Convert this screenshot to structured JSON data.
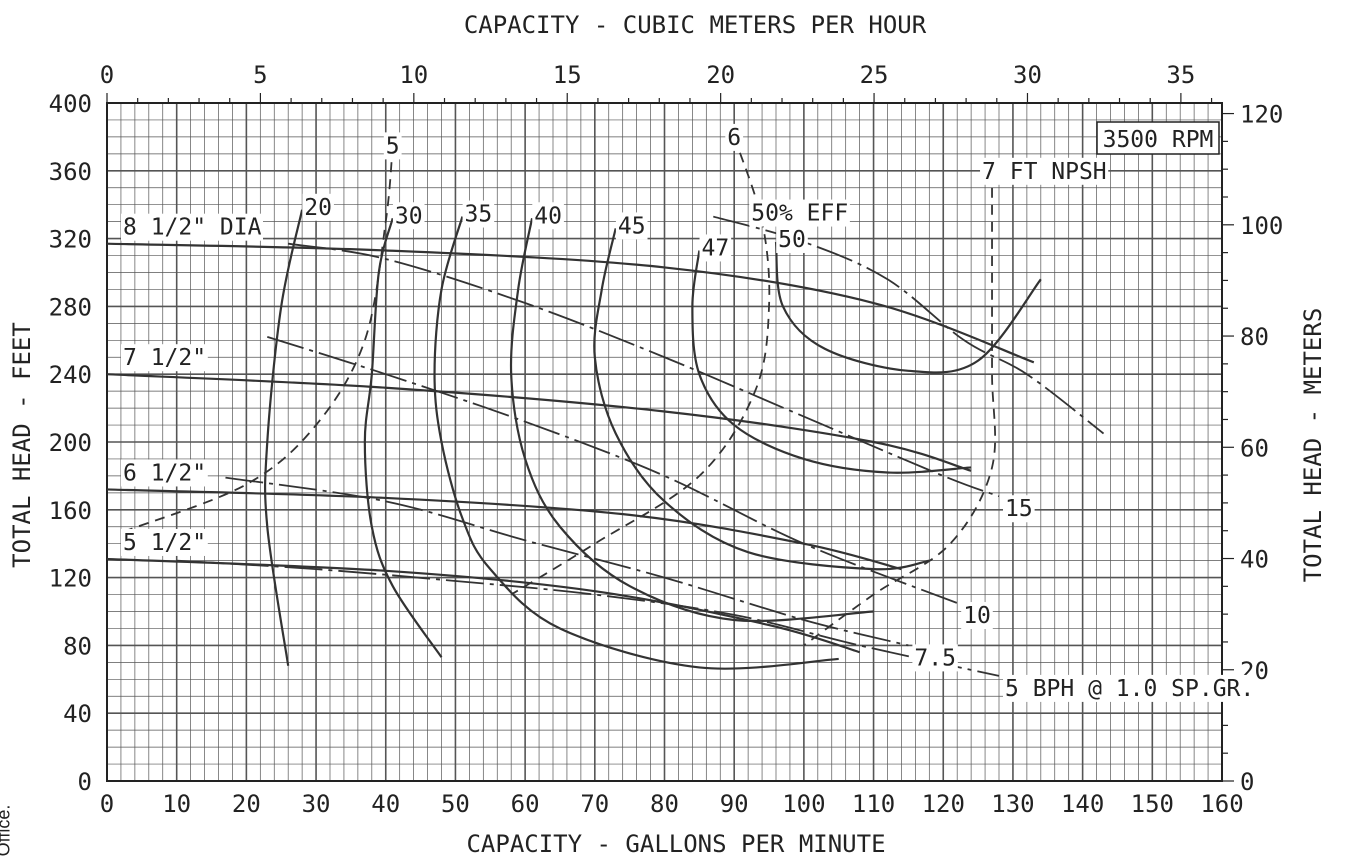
{
  "chart_data": {
    "type": "line",
    "title": "",
    "rpm_label": "3500 RPM",
    "x_bottom": {
      "label": "CAPACITY - GALLONS PER MINUTE",
      "range": [
        0,
        160
      ],
      "ticks": [
        "0",
        "10",
        "20",
        "30",
        "40",
        "50",
        "60",
        "70",
        "80",
        "90",
        "100",
        "110",
        "120",
        "130",
        "140",
        "150",
        "160"
      ]
    },
    "x_top": {
      "label": "CAPACITY - CUBIC METERS PER HOUR",
      "range": [
        0,
        36.34
      ],
      "ticks": [
        "0",
        "5",
        "10",
        "15",
        "20",
        "25",
        "30",
        "35"
      ]
    },
    "y_left": {
      "label": "TOTAL HEAD - FEET",
      "range": [
        0,
        400
      ],
      "ticks": [
        "0",
        "40",
        "80",
        "120",
        "160",
        "200",
        "240",
        "280",
        "320",
        "360",
        "400"
      ]
    },
    "y_right": {
      "label": "TOTAL HEAD - METERS",
      "range": [
        0,
        121.9
      ],
      "ticks": [
        "0",
        "20",
        "40",
        "60",
        "80",
        "100",
        "120"
      ]
    },
    "grid": true,
    "impeller_curves": [
      {
        "name": "8 1/2\" DIA",
        "points": [
          [
            0,
            317
          ],
          [
            40,
            313
          ],
          [
            80,
            303
          ],
          [
            110,
            282
          ],
          [
            133,
            247
          ]
        ]
      },
      {
        "name": "7 1/2\"",
        "points": [
          [
            0,
            240
          ],
          [
            40,
            232
          ],
          [
            80,
            218
          ],
          [
            110,
            200
          ],
          [
            124,
            183
          ]
        ]
      },
      {
        "name": "6 1/2\"",
        "points": [
          [
            0,
            172
          ],
          [
            40,
            167
          ],
          [
            75,
            157
          ],
          [
            100,
            140
          ],
          [
            114,
            125
          ]
        ]
      },
      {
        "name": "5 1/2\"",
        "points": [
          [
            0,
            131
          ],
          [
            40,
            124
          ],
          [
            70,
            112
          ],
          [
            95,
            92
          ],
          [
            108,
            76
          ]
        ]
      }
    ],
    "efficiency_curves": [
      {
        "name": "20",
        "points": [
          [
            28,
            337
          ],
          [
            25,
            280
          ],
          [
            23,
            200
          ],
          [
            23,
            150
          ],
          [
            26,
            68
          ]
        ]
      },
      {
        "name": "30",
        "points": [
          [
            41,
            332
          ],
          [
            39,
            300
          ],
          [
            38,
            240
          ],
          [
            37,
            200
          ],
          [
            38,
            150
          ],
          [
            41,
            115
          ],
          [
            48,
            73
          ]
        ]
      },
      {
        "name": "35",
        "points": [
          [
            51,
            333
          ],
          [
            48,
            290
          ],
          [
            47,
            240
          ],
          [
            48,
            200
          ],
          [
            51,
            155
          ],
          [
            55,
            125
          ],
          [
            65,
            90
          ],
          [
            85,
            67
          ],
          [
            105,
            72
          ]
        ]
      },
      {
        "name": "40",
        "points": [
          [
            61,
            332
          ],
          [
            59,
            290
          ],
          [
            58,
            240
          ],
          [
            60,
            190
          ],
          [
            65,
            150
          ],
          [
            75,
            115
          ],
          [
            90,
            95
          ],
          [
            110,
            100
          ]
        ]
      },
      {
        "name": "45",
        "points": [
          [
            73,
            326
          ],
          [
            71,
            290
          ],
          [
            70,
            250
          ],
          [
            73,
            205
          ],
          [
            80,
            165
          ],
          [
            92,
            135
          ],
          [
            110,
            125
          ],
          [
            118,
            130
          ]
        ]
      },
      {
        "name": "47",
        "points": [
          [
            85,
            313
          ],
          [
            84,
            280
          ],
          [
            85,
            240
          ],
          [
            90,
            210
          ],
          [
            100,
            190
          ],
          [
            112,
            182
          ],
          [
            124,
            185
          ]
        ]
      },
      {
        "name": "50",
        "points": [
          [
            96,
            318
          ],
          [
            97,
            280
          ],
          [
            103,
            255
          ],
          [
            115,
            242
          ],
          [
            125,
            248
          ],
          [
            134,
            296
          ]
        ]
      }
    ],
    "npsh_curves": [
      {
        "name": "5",
        "points": [
          [
            41,
            375
          ],
          [
            40,
            330
          ],
          [
            37,
            260
          ],
          [
            30,
            210
          ],
          [
            20,
            175
          ],
          [
            3,
            148
          ]
        ]
      },
      {
        "name": "6",
        "points": [
          [
            90,
            380
          ],
          [
            94,
            330
          ],
          [
            95,
            280
          ],
          [
            93,
            230
          ],
          [
            85,
            180
          ],
          [
            70,
            140
          ],
          [
            58,
            110
          ]
        ]
      },
      {
        "name": "7 FT NPSH",
        "points": [
          [
            127,
            360
          ],
          [
            127,
            300
          ],
          [
            127,
            240
          ],
          [
            127,
            185
          ],
          [
            121,
            140
          ],
          [
            110,
            110
          ],
          [
            100,
            80
          ]
        ]
      }
    ],
    "bph_lines": [
      {
        "name": "50% EFF",
        "points": [
          [
            87,
            333
          ],
          [
            100,
            318
          ],
          [
            112,
            296
          ],
          [
            123,
            260
          ],
          [
            132,
            240
          ],
          [
            143,
            205
          ]
        ]
      },
      {
        "name": "15",
        "points": [
          [
            26,
            317
          ],
          [
            40,
            308
          ],
          [
            60,
            282
          ],
          [
            80,
            250
          ],
          [
            100,
            215
          ],
          [
            120,
            180
          ],
          [
            128,
            168
          ]
        ]
      },
      {
        "name": "10",
        "points": [
          [
            23,
            262
          ],
          [
            40,
            240
          ],
          [
            60,
            212
          ],
          [
            80,
            180
          ],
          [
            100,
            140
          ],
          [
            122,
            105
          ]
        ]
      },
      {
        "name": "7.5",
        "points": [
          [
            17,
            179
          ],
          [
            40,
            165
          ],
          [
            60,
            142
          ],
          [
            80,
            120
          ],
          [
            100,
            95
          ],
          [
            115,
            80
          ]
        ]
      },
      {
        "name": "5 BPH @ 1.0 SP.GR.",
        "points": [
          [
            10,
            130
          ],
          [
            30,
            125
          ],
          [
            50,
            118
          ],
          [
            70,
            110
          ],
          [
            90,
            98
          ],
          [
            108,
            80
          ],
          [
            128,
            62
          ]
        ]
      }
    ]
  },
  "side_note": "Office."
}
